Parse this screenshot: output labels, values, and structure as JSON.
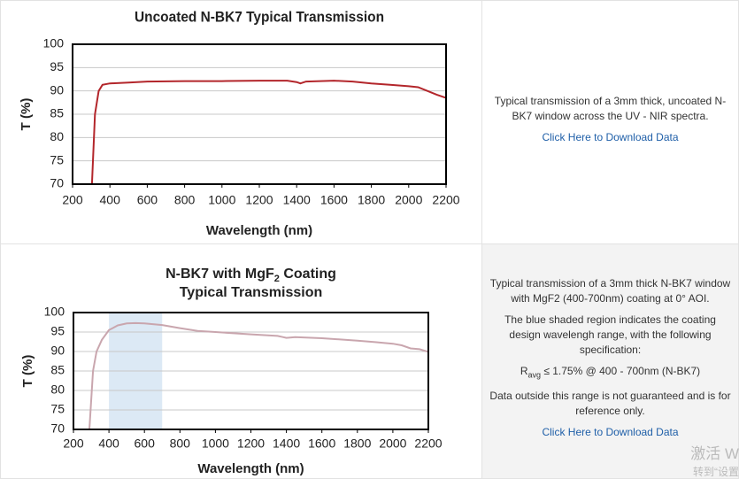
{
  "chart_data": [
    {
      "type": "line",
      "title": "Uncoated N-BK7 Typical Transmission",
      "x_label": "Wavelength (nm)",
      "y_label": "T (%)",
      "x": [
        304,
        320,
        340,
        360,
        400,
        500,
        600,
        800,
        1000,
        1200,
        1350,
        1400,
        1420,
        1450,
        1600,
        1700,
        1800,
        1900,
        2000,
        2050,
        2100,
        2150,
        2200
      ],
      "values": [
        70,
        85,
        90,
        91.3,
        91.6,
        91.8,
        92,
        92.1,
        92.1,
        92.2,
        92.2,
        91.9,
        91.6,
        92,
        92.2,
        92,
        91.6,
        91.3,
        91,
        90.8,
        90,
        89.2,
        88.5
      ],
      "color": "#b3262b",
      "xlim": [
        200,
        2200
      ],
      "xticks": [
        200,
        400,
        600,
        800,
        1000,
        1200,
        1400,
        1600,
        1800,
        2000,
        2200
      ],
      "ylim": [
        70,
        100
      ],
      "yticks": [
        70,
        75,
        80,
        85,
        90,
        95,
        100
      ],
      "grid": true
    },
    {
      "type": "line",
      "title": [
        [
          "N-BK7 with MgF",
          "2",
          " Coating"
        ],
        [
          "Typical Transmission"
        ]
      ],
      "x_label": "Wavelength (nm)",
      "y_label": "T (%)",
      "x": [
        290,
        310,
        330,
        360,
        400,
        450,
        500,
        550,
        600,
        700,
        800,
        900,
        1000,
        1200,
        1350,
        1380,
        1400,
        1450,
        1600,
        1800,
        1900,
        2000,
        2050,
        2100,
        2150,
        2200
      ],
      "values": [
        70,
        85,
        90,
        93,
        95.5,
        96.7,
        97.2,
        97.3,
        97.2,
        96.8,
        96,
        95.3,
        95,
        94.4,
        94,
        93.7,
        93.5,
        93.7,
        93.4,
        92.8,
        92.4,
        92,
        91.6,
        90.8,
        90.6,
        89.9
      ],
      "color": "#c9a6ae",
      "shade": [
        400,
        700
      ],
      "shade_color": "#dce9f5",
      "xlim": [
        200,
        2200
      ],
      "xticks": [
        200,
        400,
        600,
        800,
        1000,
        1200,
        1400,
        1600,
        1800,
        2000,
        2200
      ],
      "ylim": [
        70,
        100
      ],
      "yticks": [
        70,
        75,
        80,
        85,
        90,
        95,
        100
      ],
      "grid": true
    }
  ],
  "descriptions": [
    {
      "text": [
        "Typical transmission of a 3mm thick, uncoated N-BK7 window across the UV - NIR spectra."
      ],
      "link": "Click Here to Download Data"
    },
    {
      "text": [
        "Typical transmission of a 3mm thick N-BK7 window with MgF2 (400-700nm) coating at 0° AOI.",
        "The blue shaded region indicates the coating design wavelengh range, with the following specification:"
      ],
      "spec": [
        "R",
        "avg",
        " ≤ 1.75% @ 400 - 700nm (N-BK7)"
      ],
      "note": "Data outside this range is not guaranteed and is for reference only.",
      "link": "Click Here to Download Data"
    }
  ],
  "watermark": [
    "激活 W",
    "转到“设置"
  ]
}
